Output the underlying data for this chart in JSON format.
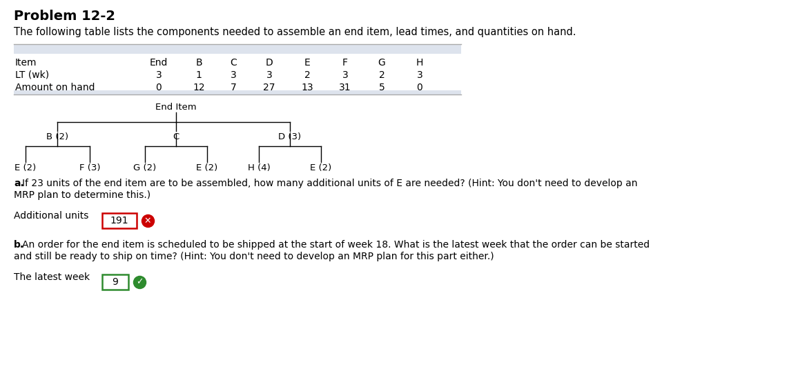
{
  "title": "Problem 12-2",
  "subtitle": "The following table lists the components needed to assemble an end item, lead times, and quantities on hand.",
  "table_headers": [
    "Item",
    "End",
    "B",
    "C",
    "D",
    "E",
    "F",
    "G",
    "H"
  ],
  "table_row1_label": "LT (wk)",
  "table_row1_values": [
    "3",
    "1",
    "3",
    "3",
    "2",
    "3",
    "2",
    "3"
  ],
  "table_row2_label": "Amount on hand",
  "table_row2_values": [
    "0",
    "12",
    "7",
    "27",
    "13",
    "31",
    "5",
    "0"
  ],
  "tree_root": "End Item",
  "tree_level1": [
    "B (2)",
    "C",
    "D (3)"
  ],
  "tree_level2_B": [
    "E (2)",
    "F (3)"
  ],
  "tree_level2_C": [
    "G (2)",
    "E (2)"
  ],
  "tree_level2_D": [
    "H (4)",
    "E (2)"
  ],
  "question_a_bold": "a.",
  "question_a_normal": " If 23 units of the end item are to be assembled, how many additional units of E are needed? (Hint: You don't need to develop an",
  "question_a_line2": "MRP plan to determine this.)",
  "label_a": "Additional units",
  "answer_a": "191",
  "answer_a_correct": false,
  "question_b_bold": "b.",
  "question_b_normal": " An order for the end item is scheduled to be shipped at the start of week 18. What is the latest week that the order can be started",
  "question_b_line2": "and still be ready to ship on time? (Hint: You don't need to develop an MRP plan for this part either.)",
  "label_b": "The latest week",
  "answer_b": "9",
  "answer_b_correct": true,
  "bg_color": "#ffffff",
  "table_header_bg": "#dde3ed",
  "font_color": "#000000",
  "table_border_color": "#aaaaaa"
}
